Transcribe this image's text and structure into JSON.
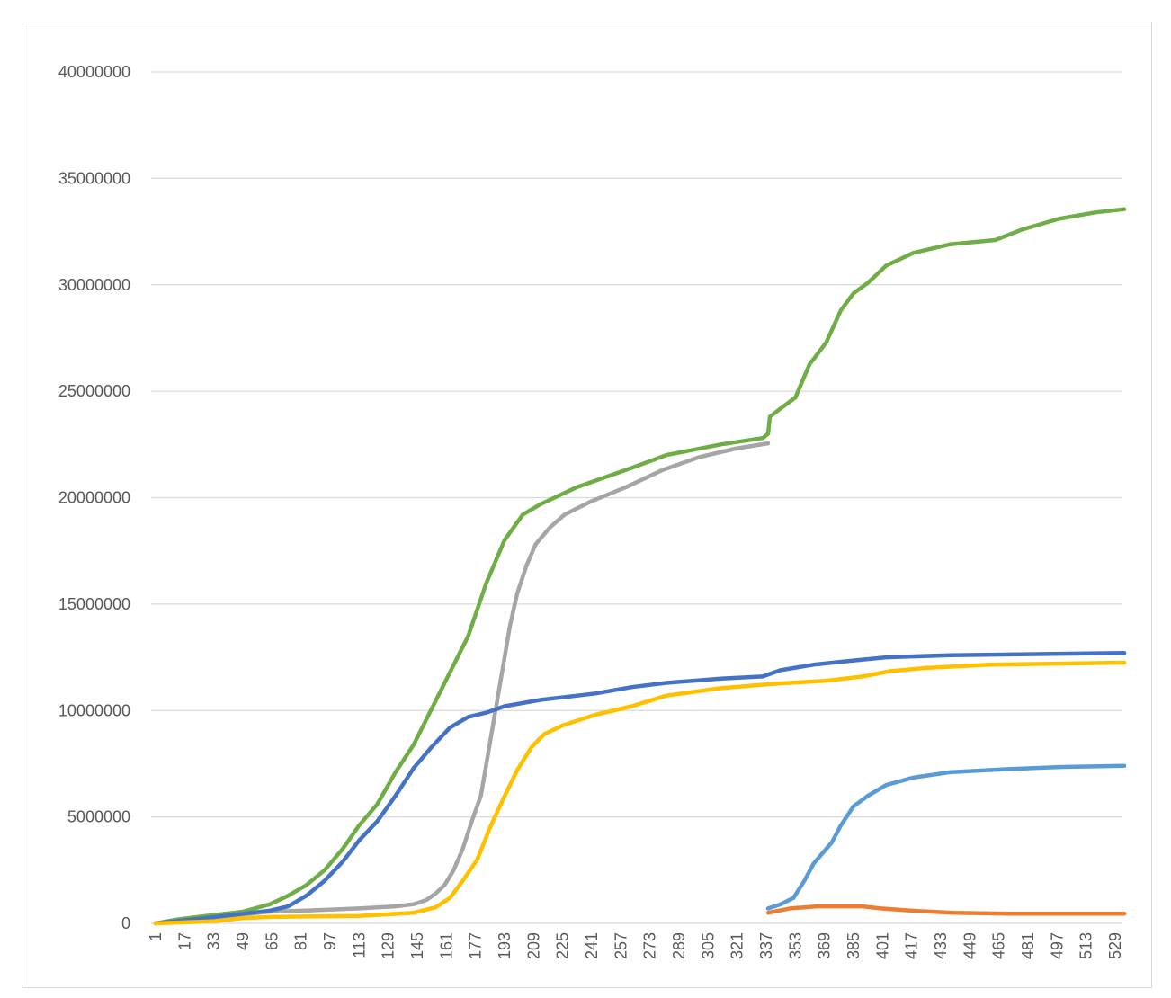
{
  "chart_data": {
    "type": "line",
    "title": "",
    "xlabel": "",
    "ylabel": "",
    "ylim": [
      0,
      40000000
    ],
    "xlim": [
      1,
      534
    ],
    "grid": true,
    "legend": "none",
    "y_ticks": [
      "0",
      "5000000",
      "10000000",
      "15000000",
      "20000000",
      "25000000",
      "30000000",
      "35000000",
      "40000000"
    ],
    "x_ticks": [
      "1",
      "17",
      "33",
      "49",
      "65",
      "81",
      "97",
      "113",
      "129",
      "145",
      "161",
      "177",
      "193",
      "209",
      "225",
      "241",
      "257",
      "273",
      "289",
      "305",
      "321",
      "337",
      "353",
      "369",
      "385",
      "401",
      "417",
      "433",
      "449",
      "465",
      "481",
      "497",
      "513",
      "529"
    ],
    "series": [
      {
        "name": "series-green",
        "color": "#70AD47",
        "points": [
          [
            1,
            0
          ],
          [
            14,
            0.2
          ],
          [
            34,
            0.4
          ],
          [
            49,
            0.55
          ],
          [
            64,
            0.9
          ],
          [
            74,
            1.3
          ],
          [
            84,
            1.8
          ],
          [
            94,
            2.5
          ],
          [
            104,
            3.5
          ],
          [
            113,
            4.6
          ],
          [
            123,
            5.6
          ],
          [
            133,
            7.1
          ],
          [
            143,
            8.4
          ],
          [
            153,
            10.1
          ],
          [
            163,
            11.8
          ],
          [
            173,
            13.5
          ],
          [
            183,
            16.0
          ],
          [
            193,
            18.0
          ],
          [
            203,
            19.2
          ],
          [
            213,
            19.7
          ],
          [
            223,
            20.1
          ],
          [
            233,
            20.5
          ],
          [
            243,
            20.8
          ],
          [
            263,
            21.4
          ],
          [
            282,
            22.0
          ],
          [
            312,
            22.5
          ],
          [
            335,
            22.8
          ],
          [
            338,
            23.0
          ],
          [
            339,
            23.8
          ],
          [
            345,
            24.2
          ],
          [
            353,
            24.7
          ],
          [
            361,
            26.3
          ],
          [
            363,
            26.5
          ],
          [
            370,
            27.3
          ],
          [
            378,
            28.8
          ],
          [
            385,
            29.6
          ],
          [
            393,
            30.1
          ],
          [
            403,
            30.9
          ],
          [
            418,
            31.5
          ],
          [
            438,
            31.9
          ],
          [
            463,
            32.1
          ],
          [
            478,
            32.6
          ],
          [
            498,
            33.1
          ],
          [
            518,
            33.4
          ],
          [
            534,
            33.55
          ]
        ]
      },
      {
        "name": "series-gray",
        "color": "#A5A5A5",
        "points": [
          [
            1,
            0
          ],
          [
            34,
            0.3
          ],
          [
            64,
            0.55
          ],
          [
            84,
            0.6
          ],
          [
            113,
            0.7
          ],
          [
            133,
            0.8
          ],
          [
            143,
            0.9
          ],
          [
            150,
            1.1
          ],
          [
            155,
            1.4
          ],
          [
            160,
            1.8
          ],
          [
            165,
            2.5
          ],
          [
            170,
            3.5
          ],
          [
            175,
            4.8
          ],
          [
            180,
            6.0
          ],
          [
            184,
            8.0
          ],
          [
            188,
            10.0
          ],
          [
            192,
            12.0
          ],
          [
            196,
            14.0
          ],
          [
            200,
            15.5
          ],
          [
            205,
            16.8
          ],
          [
            210,
            17.8
          ],
          [
            218,
            18.6
          ],
          [
            226,
            19.2
          ],
          [
            240,
            19.8
          ],
          [
            260,
            20.5
          ],
          [
            280,
            21.3
          ],
          [
            300,
            21.9
          ],
          [
            320,
            22.3
          ],
          [
            338,
            22.55
          ]
        ]
      },
      {
        "name": "series-blue",
        "color": "#4472C4",
        "points": [
          [
            1,
            0
          ],
          [
            34,
            0.3
          ],
          [
            64,
            0.6
          ],
          [
            74,
            0.8
          ],
          [
            84,
            1.3
          ],
          [
            94,
            2.0
          ],
          [
            104,
            2.9
          ],
          [
            113,
            3.9
          ],
          [
            123,
            4.8
          ],
          [
            133,
            6.0
          ],
          [
            143,
            7.3
          ],
          [
            153,
            8.3
          ],
          [
            163,
            9.2
          ],
          [
            173,
            9.7
          ],
          [
            183,
            9.9
          ],
          [
            193,
            10.2
          ],
          [
            213,
            10.5
          ],
          [
            243,
            10.8
          ],
          [
            263,
            11.1
          ],
          [
            282,
            11.3
          ],
          [
            312,
            11.5
          ],
          [
            335,
            11.6
          ],
          [
            345,
            11.9
          ],
          [
            363,
            12.15
          ],
          [
            385,
            12.35
          ],
          [
            403,
            12.5
          ],
          [
            438,
            12.6
          ],
          [
            534,
            12.7
          ]
        ]
      },
      {
        "name": "series-yellow",
        "color": "#FFC000",
        "points": [
          [
            1,
            0
          ],
          [
            34,
            0.1
          ],
          [
            49,
            0.25
          ],
          [
            64,
            0.3
          ],
          [
            113,
            0.35
          ],
          [
            143,
            0.5
          ],
          [
            155,
            0.75
          ],
          [
            163,
            1.2
          ],
          [
            170,
            2.0
          ],
          [
            178,
            3.0
          ],
          [
            185,
            4.5
          ],
          [
            192,
            5.8
          ],
          [
            200,
            7.2
          ],
          [
            208,
            8.3
          ],
          [
            215,
            8.9
          ],
          [
            225,
            9.3
          ],
          [
            243,
            9.8
          ],
          [
            263,
            10.2
          ],
          [
            282,
            10.7
          ],
          [
            312,
            11.05
          ],
          [
            340,
            11.25
          ],
          [
            370,
            11.4
          ],
          [
            390,
            11.6
          ],
          [
            405,
            11.85
          ],
          [
            425,
            12.0
          ],
          [
            460,
            12.15
          ],
          [
            534,
            12.25
          ]
        ]
      },
      {
        "name": "series-light-blue",
        "color": "#5B9BD5",
        "points": [
          [
            338,
            0.7
          ],
          [
            345,
            0.9
          ],
          [
            352,
            1.2
          ],
          [
            358,
            2.0
          ],
          [
            363,
            2.8
          ],
          [
            368,
            3.3
          ],
          [
            373,
            3.8
          ],
          [
            378,
            4.6
          ],
          [
            385,
            5.5
          ],
          [
            393,
            6.0
          ],
          [
            403,
            6.5
          ],
          [
            418,
            6.85
          ],
          [
            438,
            7.1
          ],
          [
            470,
            7.25
          ],
          [
            500,
            7.35
          ],
          [
            534,
            7.4
          ]
        ]
      },
      {
        "name": "series-orange",
        "color": "#ED7D31",
        "points": [
          [
            338,
            0.5
          ],
          [
            350,
            0.7
          ],
          [
            365,
            0.8
          ],
          [
            390,
            0.8
          ],
          [
            400,
            0.7
          ],
          [
            420,
            0.58
          ],
          [
            440,
            0.5
          ],
          [
            470,
            0.45
          ],
          [
            534,
            0.45
          ]
        ]
      }
    ],
    "value_unit_multiplier": 1000000
  }
}
